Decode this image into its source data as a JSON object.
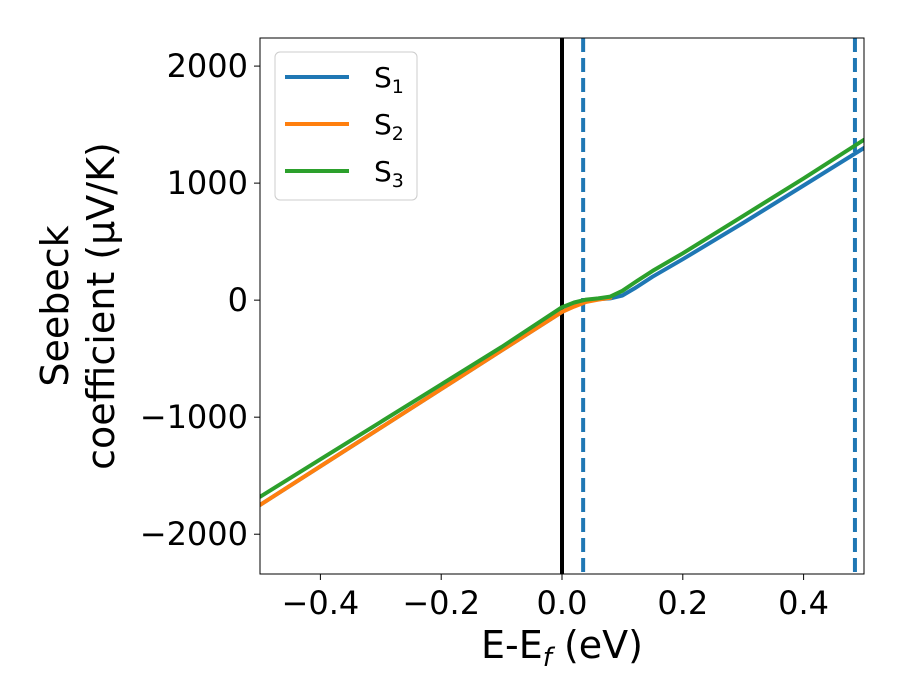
{
  "chart_data": {
    "type": "line",
    "title": "",
    "xlabel": {
      "base": "E-E",
      "sub": "f",
      "unit": " (eV)"
    },
    "ylabel": {
      "line1": "Seebeck",
      "line2": "coefficient  (μV/K)"
    },
    "xlim": [
      -0.5,
      0.5
    ],
    "ylim": [
      -2340,
      2240
    ],
    "xticks": [
      {
        "value": -0.4,
        "label": "−0.4"
      },
      {
        "value": -0.2,
        "label": "−0.2"
      },
      {
        "value": 0.0,
        "label": "0.0"
      },
      {
        "value": 0.2,
        "label": "0.2"
      },
      {
        "value": 0.4,
        "label": "0.4"
      }
    ],
    "yticks": [
      {
        "value": -2000,
        "label": "−2000"
      },
      {
        "value": -1000,
        "label": "−1000"
      },
      {
        "value": 0,
        "label": "0"
      },
      {
        "value": 1000,
        "label": "1000"
      },
      {
        "value": 2000,
        "label": "2000"
      }
    ],
    "grid": false,
    "legend_position": "top-left",
    "series": [
      {
        "name": "S",
        "sub": "1",
        "color": "#1f77b4",
        "x": [
          -0.5,
          -0.4,
          -0.3,
          -0.2,
          -0.1,
          0.0,
          0.02,
          0.04,
          0.06,
          0.08,
          0.1,
          0.12,
          0.15,
          0.2,
          0.3,
          0.4,
          0.5
        ],
        "y": [
          -1750,
          -1420,
          -1090,
          -760,
          -430,
          -100,
          -50,
          -10,
          8,
          15,
          40,
          100,
          200,
          350,
          660,
          980,
          1300
        ]
      },
      {
        "name": "S",
        "sub": "2",
        "color": "#ff7f0e",
        "x": [
          -0.5,
          -0.4,
          -0.3,
          -0.2,
          -0.1,
          0.0,
          0.02,
          0.04,
          0.06,
          0.08
        ],
        "y": [
          -1750,
          -1420,
          -1090,
          -760,
          -430,
          -100,
          -55,
          -15,
          5,
          20
        ]
      },
      {
        "name": "S",
        "sub": "3",
        "color": "#2ca02c",
        "x": [
          -0.5,
          -0.4,
          -0.3,
          -0.2,
          -0.1,
          0.0,
          0.02,
          0.04,
          0.06,
          0.08,
          0.1,
          0.12,
          0.15,
          0.2,
          0.3,
          0.4,
          0.5
        ],
        "y": [
          -1680,
          -1360,
          -1040,
          -720,
          -400,
          -60,
          -20,
          5,
          15,
          30,
          80,
          150,
          250,
          400,
          720,
          1040,
          1370
        ]
      }
    ],
    "reference_lines": [
      {
        "x": 0.0,
        "color": "#000000",
        "style": "solid"
      },
      {
        "x": 0.035,
        "color": "#1f77b4",
        "style": "dashed"
      },
      {
        "x": 0.485,
        "color": "#1f77b4",
        "style": "dashed"
      }
    ]
  }
}
